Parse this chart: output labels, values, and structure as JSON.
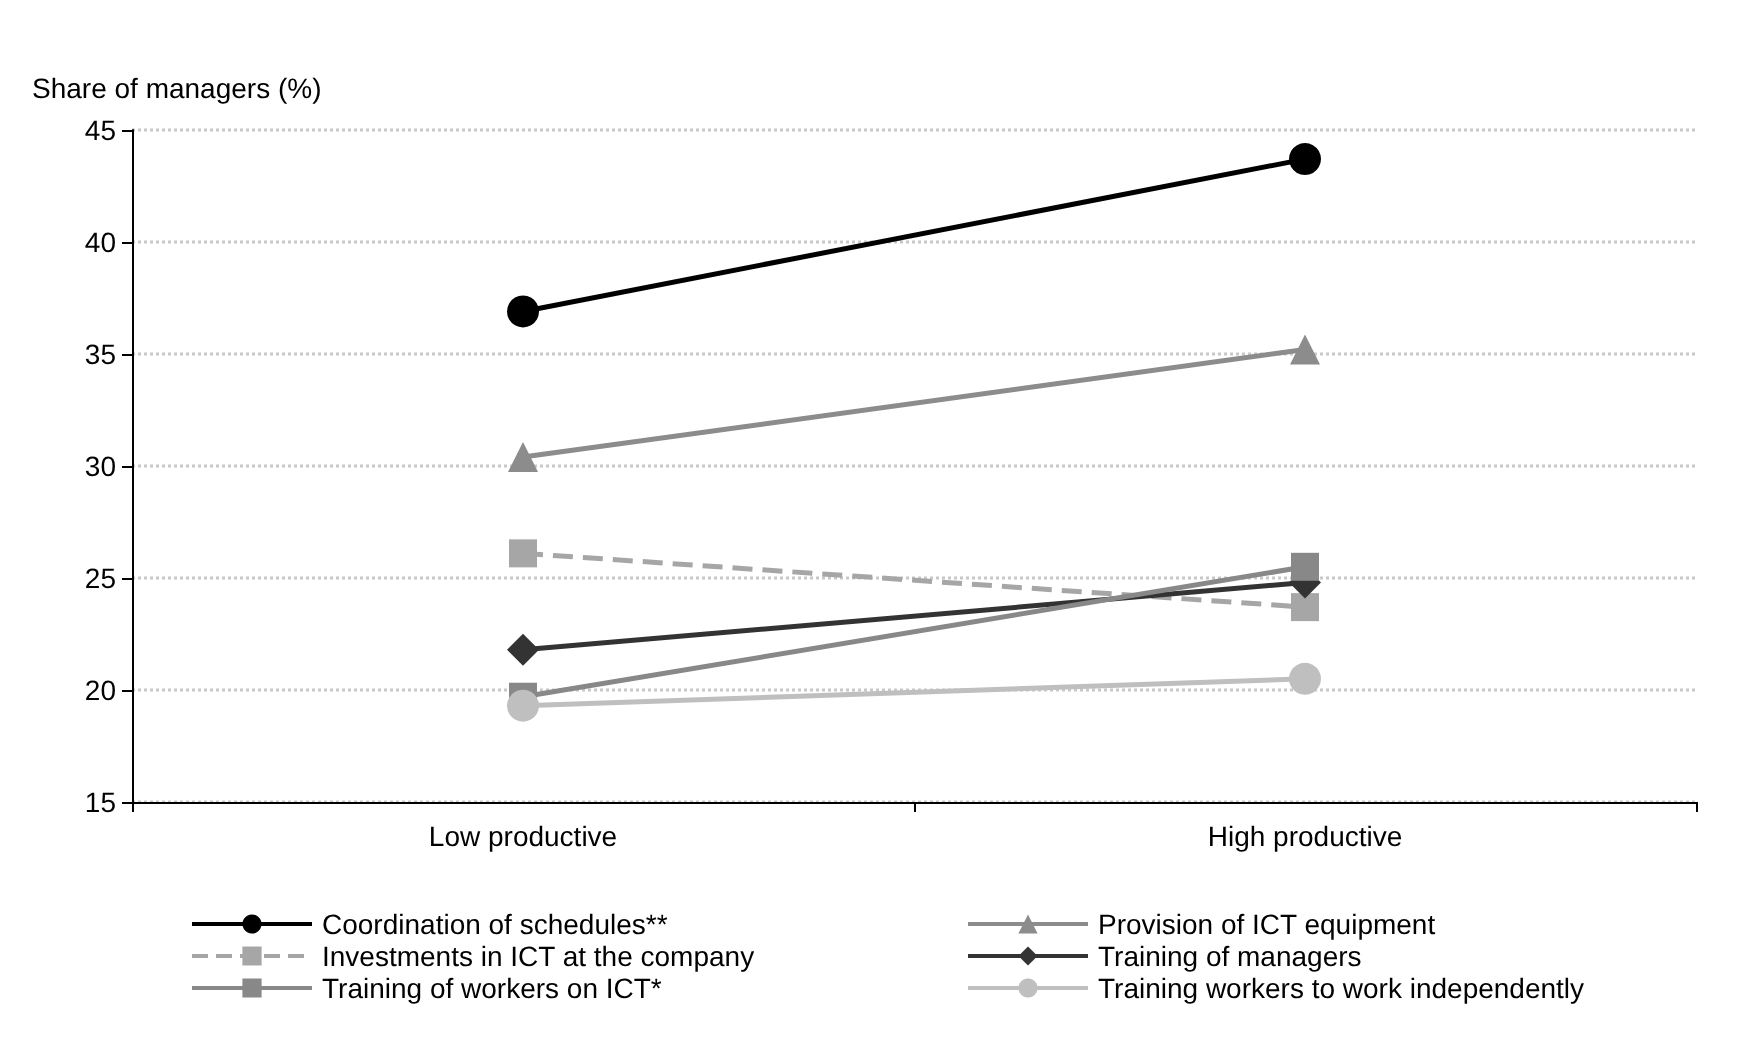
{
  "chart_data": {
    "type": "line",
    "ylabel": "Share of managers (%)",
    "categories": [
      "Low productive",
      "High productive"
    ],
    "ylim": [
      15,
      45
    ],
    "yticks": [
      15,
      20,
      25,
      30,
      35,
      40,
      45
    ],
    "grid": "y",
    "legend": "bottom",
    "series": [
      {
        "name": "Coordination of schedules**",
        "color": "#000000",
        "marker": "circle",
        "values": [
          36.9,
          43.7
        ]
      },
      {
        "name": "Provision of ICT equipment",
        "color": "#8c8c8c",
        "marker": "triangle",
        "values": [
          30.4,
          35.2
        ]
      },
      {
        "name": "Investments in ICT at the company",
        "color": "#a6a6a6",
        "marker": "square",
        "line_style": "dashed",
        "values": [
          26.1,
          23.7
        ]
      },
      {
        "name": "Training of managers",
        "color": "#333333",
        "marker": "diamond",
        "values": [
          21.8,
          24.8
        ]
      },
      {
        "name": "Training of workers on ICT*",
        "color": "#888888",
        "marker": "square",
        "values": [
          19.7,
          25.5
        ]
      },
      {
        "name": "Training workers to work independently",
        "color": "#bfbfbf",
        "marker": "circle",
        "values": [
          19.3,
          20.5
        ]
      }
    ]
  }
}
